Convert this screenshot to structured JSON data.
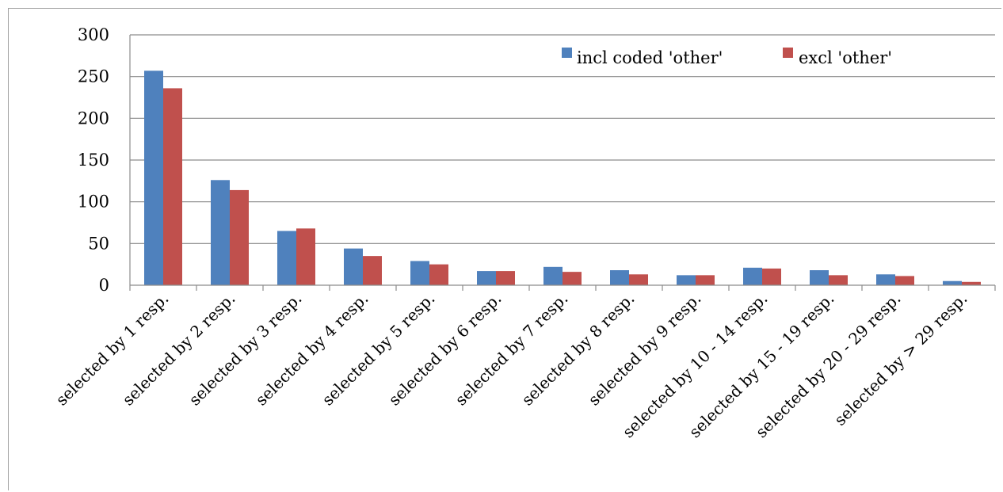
{
  "chart_data": {
    "type": "bar",
    "categories": [
      "selected by 1 resp.",
      "selected by 2 resp.",
      "selected by 3 resp.",
      "selected by 4 resp.",
      "selected by 5 resp.",
      "selected by 6 resp.",
      "selected by 7 resp.",
      "selected by 8 resp.",
      "selected by 9 resp.",
      "selected by 10 - 14 resp.",
      "selected by 15 - 19 resp.",
      "selected by 20 - 29 resp.",
      "selected by > 29 resp."
    ],
    "series": [
      {
        "name": "incl coded 'other'",
        "color": "#4f81bd",
        "values": [
          257,
          126,
          65,
          44,
          29,
          17,
          22,
          18,
          12,
          21,
          18,
          13,
          5
        ]
      },
      {
        "name": "excl 'other'",
        "color": "#c0504d",
        "values": [
          236,
          114,
          68,
          35,
          25,
          17,
          16,
          13,
          12,
          20,
          12,
          11,
          4
        ]
      }
    ],
    "yticks": [
      "0",
      "50",
      "100",
      "150",
      "200",
      "250",
      "300"
    ],
    "ylim": [
      0,
      300
    ],
    "grid": true,
    "legend_position": "top-right"
  }
}
